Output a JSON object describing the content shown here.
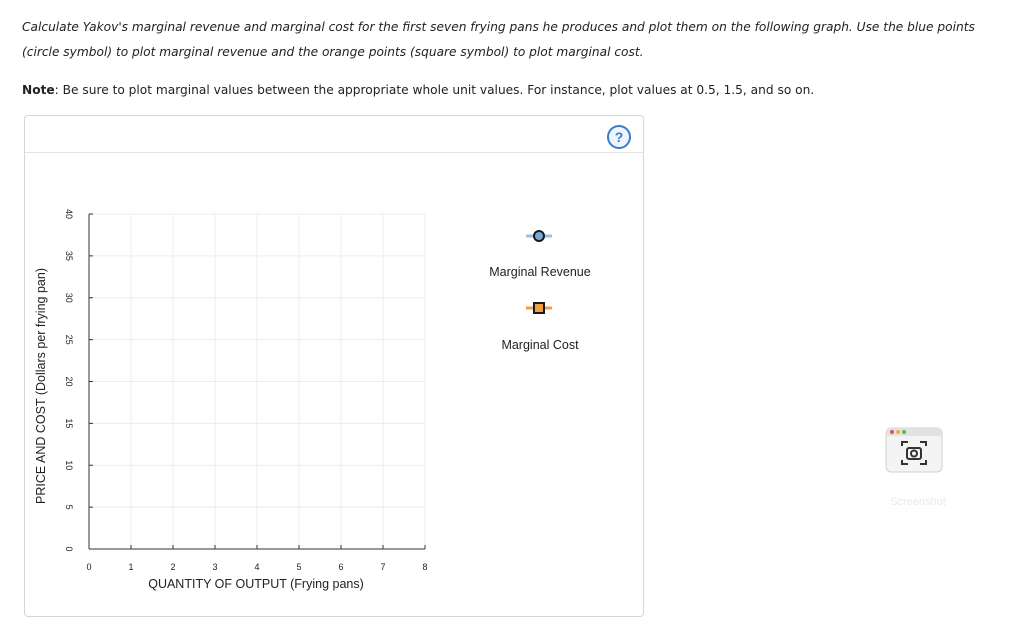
{
  "prompt": {
    "instructions": "Calculate Yakov's marginal revenue and marginal cost for the first seven frying pans he produces and plot them on the following graph. Use the blue points (circle symbol) to plot marginal revenue and the orange points (square symbol) to plot marginal cost.",
    "note_label": "Note",
    "note_text": ": Be sure to plot marginal values between the appropriate whole unit values. For instance, plot values at 0.5, 1.5, and so on."
  },
  "help_button": "?",
  "chart_data": {
    "type": "scatter",
    "xlabel": "QUANTITY OF OUTPUT (Frying pans)",
    "ylabel": "PRICE AND COST (Dollars per frying pan)",
    "xlim": [
      0,
      8
    ],
    "ylim": [
      0,
      40
    ],
    "x_ticks": [
      "0",
      "1",
      "2",
      "3",
      "4",
      "5",
      "6",
      "7",
      "8"
    ],
    "y_ticks": [
      "0",
      "5",
      "10",
      "15",
      "20",
      "25",
      "30",
      "35",
      "40"
    ],
    "grid": true,
    "series": [
      {
        "name": "Marginal Revenue",
        "marker": "circle",
        "color": "#7aa7d6",
        "points": []
      },
      {
        "name": "Marginal Cost",
        "marker": "square",
        "color": "#f0a040",
        "points": []
      }
    ],
    "legend_position": "right"
  },
  "screenshot_tool": {
    "label": "Screenshot"
  }
}
